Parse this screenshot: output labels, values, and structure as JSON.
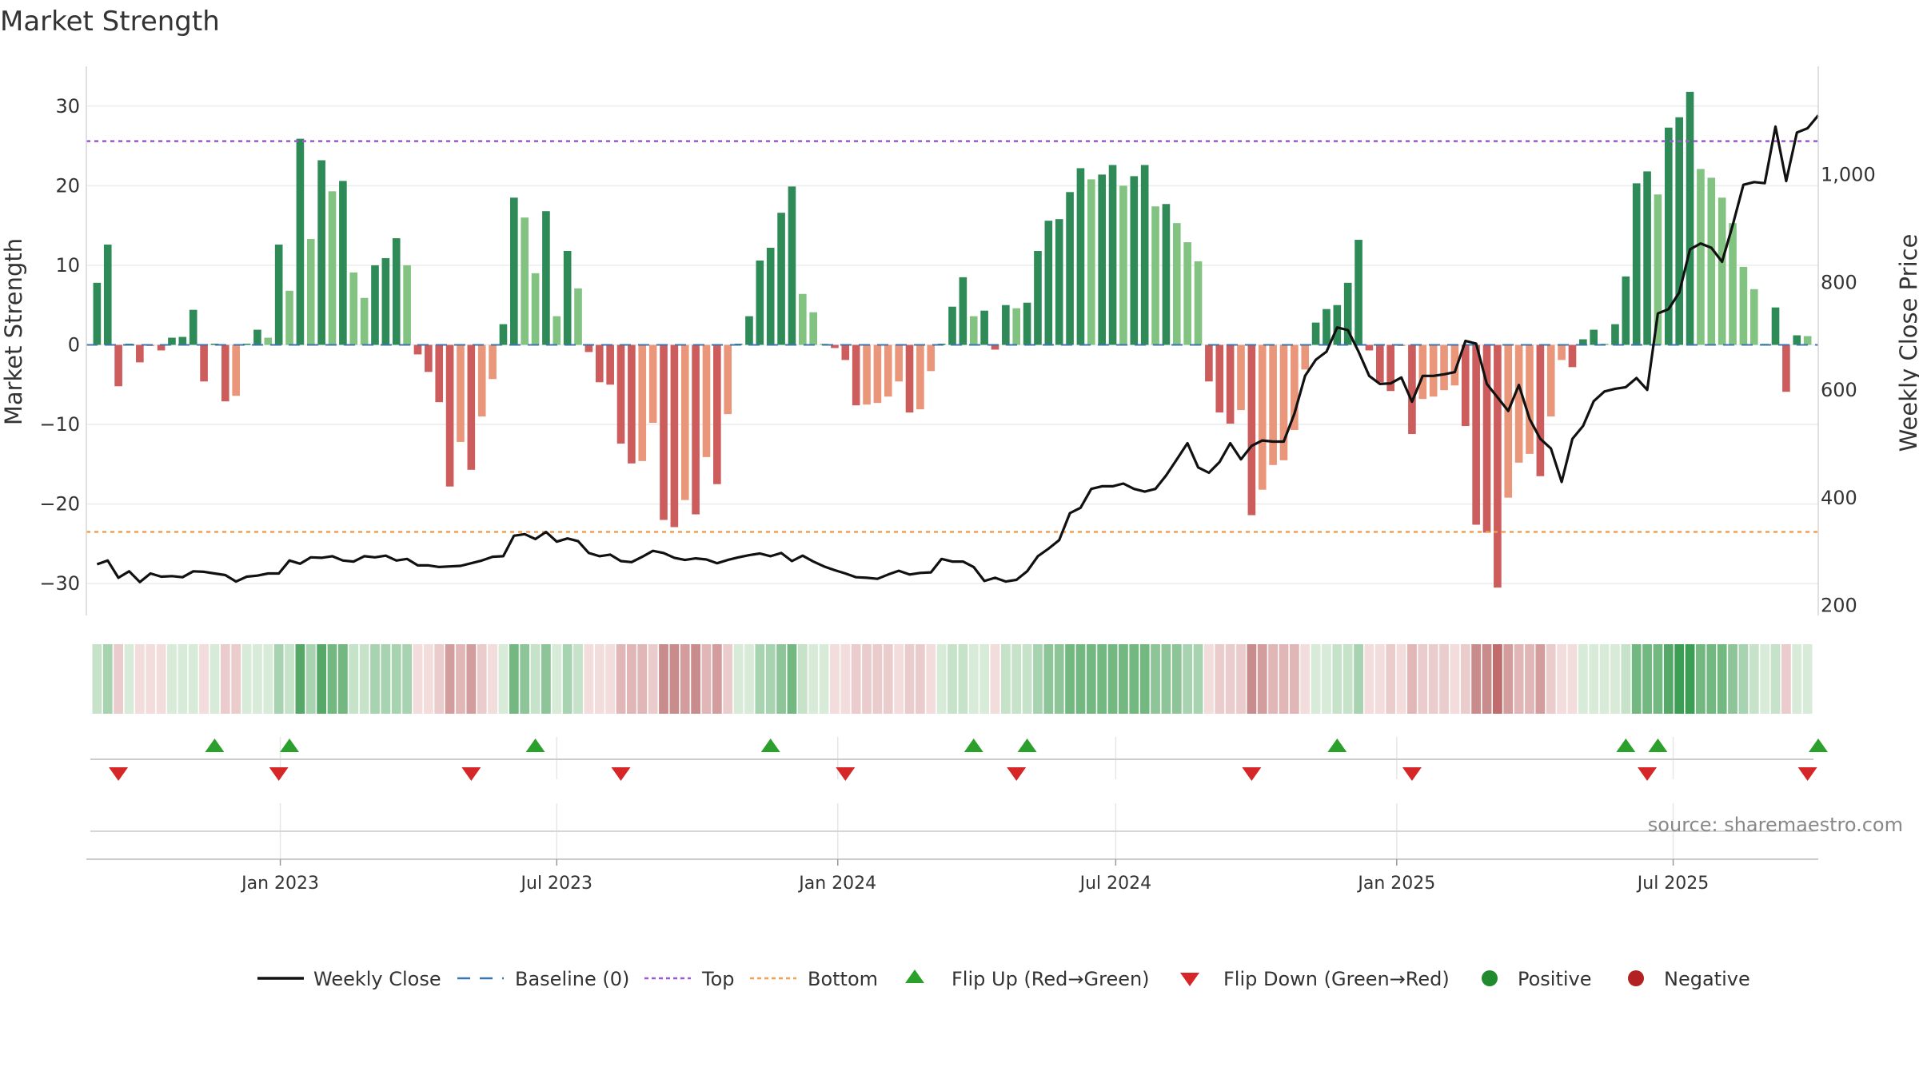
{
  "chart_data": {
    "type": "bar",
    "title": "Market Strength",
    "ylabel_left": "Market Strength",
    "ylabel_right": "Weekly Close Price",
    "ylim_left": [
      -34,
      35
    ],
    "ylim_right": [
      180,
      1200
    ],
    "yticks_left": [
      30,
      20,
      10,
      0,
      -10,
      -20,
      -30
    ],
    "yticks_left_labels": [
      "30",
      "20",
      "10",
      "0",
      "−10",
      "−20",
      "−30"
    ],
    "yticks_right": [
      1000,
      800,
      600,
      400,
      200
    ],
    "yticks_right_labels": [
      "1,000",
      "800",
      "600",
      "400",
      "200"
    ],
    "x_range": [
      "2022-08-27",
      "2025-10-04"
    ],
    "x_ticks": [
      {
        "date": "2023-01-01",
        "label": "Jan 2023"
      },
      {
        "date": "2023-07-01",
        "label": "Jul 2023"
      },
      {
        "date": "2024-01-01",
        "label": "Jan 2024"
      },
      {
        "date": "2024-07-01",
        "label": "Jul 2024"
      },
      {
        "date": "2025-01-01",
        "label": "Jan 2025"
      },
      {
        "date": "2025-07-01",
        "label": "Jul 2025"
      }
    ],
    "first_week": "2022-09-03",
    "week_step_days": 7,
    "top_line": 25.6,
    "bottom_line": -23.5,
    "baseline": 0,
    "strength_values": [
      7.8,
      12.6,
      -5.2,
      0.1,
      -2.2,
      -0.1,
      -0.7,
      0.9,
      1.0,
      4.4,
      -4.6,
      0.1,
      -7.1,
      -6.4,
      0.1,
      1.9,
      0.9,
      12.6,
      6.8,
      25.9,
      13.3,
      23.2,
      19.3,
      20.6,
      9.1,
      5.9,
      10.0,
      10.9,
      13.4,
      10.0,
      -1.2,
      -3.4,
      -7.2,
      -17.8,
      -12.2,
      -15.7,
      -9.0,
      -4.3,
      2.6,
      18.5,
      16.0,
      9.0,
      16.8,
      3.6,
      11.8,
      7.1,
      -0.9,
      -4.7,
      -5.0,
      -12.4,
      -14.9,
      -14.6,
      -9.8,
      -22.0,
      -22.9,
      -19.5,
      -21.3,
      -14.1,
      -17.5,
      -8.7,
      0.1,
      3.6,
      10.6,
      12.2,
      16.6,
      19.9,
      6.4,
      4.1,
      0.1,
      -0.4,
      -1.9,
      -7.6,
      -7.5,
      -7.3,
      -6.5,
      -4.6,
      -8.5,
      -8.1,
      -3.3,
      0.1,
      4.8,
      8.5,
      3.6,
      4.3,
      -0.6,
      5.0,
      4.6,
      5.3,
      11.8,
      15.6,
      15.8,
      19.2,
      22.2,
      20.8,
      21.4,
      22.6,
      20.0,
      21.2,
      22.6,
      17.4,
      17.7,
      15.3,
      12.9,
      10.5,
      -4.6,
      -8.5,
      -9.9,
      -8.2,
      -21.4,
      -18.2,
      -15.1,
      -14.5,
      -10.7,
      -3.1,
      2.8,
      4.5,
      5.0,
      7.8,
      13.2,
      -0.7,
      -4.7,
      -5.8,
      -0.1,
      -11.2,
      -6.8,
      -6.5,
      -5.7,
      -5.1,
      -10.2,
      -22.6,
      -23.6,
      -30.5,
      -19.2,
      -14.8,
      -13.7,
      -16.5,
      -9.0,
      -1.9,
      -2.8,
      0.7,
      1.9,
      0.1,
      2.6,
      8.6,
      20.3,
      21.8,
      18.9,
      27.3,
      28.6,
      31.8,
      22.1,
      21.0,
      18.5,
      15.3,
      9.8,
      7.0,
      0.1,
      4.7,
      -5.9,
      1.2,
      1.1
    ],
    "close_prices": [
      275,
      282,
      250,
      262,
      242,
      258,
      252,
      253,
      251,
      262,
      261,
      258,
      255,
      243,
      252,
      254,
      258,
      258,
      282,
      276,
      288,
      287,
      290,
      282,
      280,
      290,
      288,
      291,
      282,
      285,
      273,
      273,
      270,
      271,
      272,
      277,
      282,
      289,
      290,
      328,
      331,
      322,
      335,
      317,
      323,
      318,
      296,
      290,
      293,
      281,
      279,
      289,
      300,
      296,
      287,
      283,
      286,
      284,
      277,
      283,
      288,
      292,
      295,
      290,
      296,
      281,
      291,
      280,
      271,
      264,
      258,
      251,
      250,
      248,
      256,
      263,
      256,
      259,
      260,
      285,
      280,
      280,
      270,
      244,
      250,
      243,
      246,
      262,
      290,
      304,
      320,
      370,
      380,
      415,
      420,
      420,
      425,
      415,
      410,
      415,
      440,
      470,
      500,
      455,
      445,
      465,
      500,
      470,
      495,
      505,
      503,
      503,
      555,
      625,
      655,
      670,
      715,
      710,
      670,
      625,
      610,
      611,
      622,
      577,
      625,
      625,
      628,
      632,
      690,
      685,
      610,
      585,
      560,
      608,
      545,
      508,
      490,
      428,
      508,
      532,
      578,
      596,
      601,
      604,
      621,
      599,
      741,
      749,
      780,
      860,
      871,
      863,
      837,
      905,
      980,
      985,
      983,
      1088,
      987,
      1077,
      1085,
      1109
    ],
    "heat_strip": {
      "colors": [
        "#d8ebd8",
        "#c6e2c9",
        "#a8d3b0",
        "#8dc598",
        "#72b880",
        "#55a868",
        "#3c9e55",
        "#f2dcdc",
        "#ebcccc",
        "#e0b6b6",
        "#d39d9d",
        "#c98c8c",
        "#c06c6c"
      ]
    },
    "flip_up_dates": [
      "2022-11-19",
      "2023-01-07",
      "2023-06-17",
      "2023-11-18",
      "2024-03-30",
      "2024-05-04",
      "2024-11-23",
      "2025-05-31",
      "2025-06-21",
      "2025-10-04"
    ],
    "flip_down_dates": [
      "2022-09-17",
      "2022-12-31",
      "2023-05-06",
      "2023-08-12",
      "2024-01-06",
      "2024-04-27",
      "2024-09-28",
      "2025-01-11",
      "2025-06-14",
      "2025-09-27"
    ],
    "legend": [
      {
        "key": "close",
        "label": "Weekly Close",
        "color": "#111111",
        "symbol": "line"
      },
      {
        "key": "baseline",
        "label": "Baseline (0)",
        "color": "#3b75af",
        "symbol": "dash"
      },
      {
        "key": "top",
        "label": "Top",
        "color": "#9b59d0",
        "symbol": "dot"
      },
      {
        "key": "bottom",
        "label": "Bottom",
        "color": "#f0a050",
        "symbol": "dot"
      },
      {
        "key": "flip_up",
        "label": "Flip Up (Red→Green)",
        "color": "#2ca02c",
        "symbol": "triangle-up"
      },
      {
        "key": "flip_down",
        "label": "Flip Down (Green→Red)",
        "color": "#d62728",
        "symbol": "triangle-down"
      },
      {
        "key": "positive",
        "label": "Positive",
        "color": "#1f8b2c",
        "symbol": "circle"
      },
      {
        "key": "negative",
        "label": "Negative",
        "color": "#b22222",
        "symbol": "circle"
      }
    ],
    "colors": {
      "pos_strong": "#2e8b57",
      "pos_weak": "#82c382",
      "neg_strong": "#cd5c5c",
      "neg_weak": "#e9967a",
      "close_line": "#111111",
      "top_line": "#9b59d0",
      "bottom_line": "#f0a050",
      "baseline": "#3b75af",
      "flip_up": "#2ca02c",
      "flip_down": "#d62728",
      "grid": "#ececec"
    },
    "grid": true,
    "legend_position": "bottom"
  },
  "source_text": "source: sharemaestro.com"
}
